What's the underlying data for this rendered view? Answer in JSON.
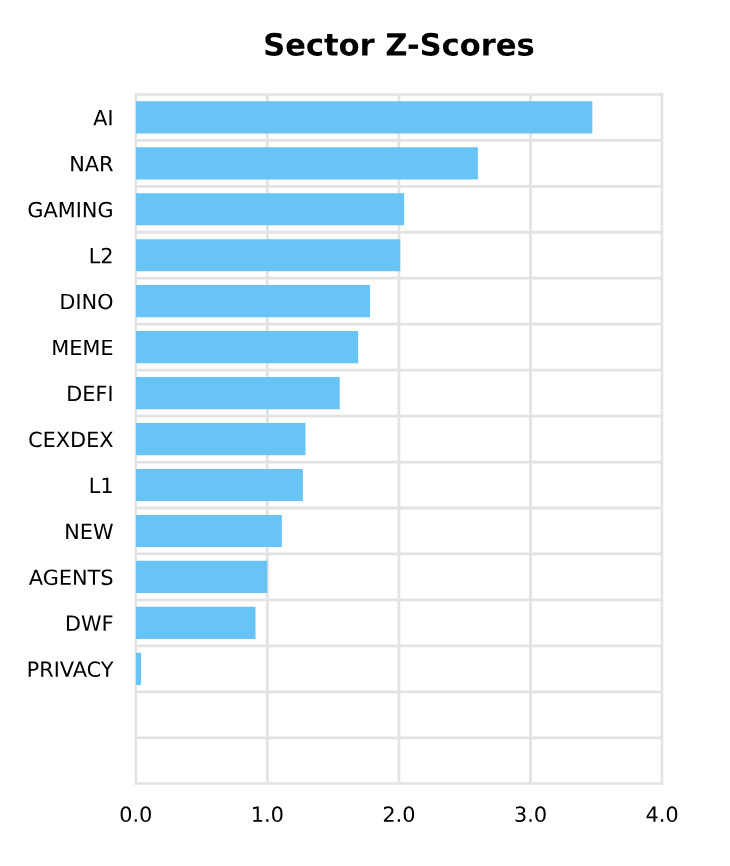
{
  "chart_data": {
    "type": "bar",
    "orientation": "horizontal",
    "title": "Sector Z-Scores",
    "categories": [
      "AI",
      "NAR",
      "GAMING",
      "L2",
      "DINO",
      "MEME",
      "DEFI",
      "CEXDEX",
      "L1",
      "NEW",
      "AGENTS",
      "DWF",
      "PRIVACY",
      null,
      null
    ],
    "values": [
      3.47,
      2.6,
      2.04,
      2.01,
      1.78,
      1.69,
      1.55,
      1.29,
      1.27,
      1.11,
      1.0,
      0.91,
      0.04,
      null,
      null
    ],
    "color": "#68c4f4",
    "xlim": [
      0,
      4
    ],
    "xticks": [
      {
        "value": 0,
        "label": "0.0"
      },
      {
        "value": 1,
        "label": "1.0"
      },
      {
        "value": 2,
        "label": "2.0"
      },
      {
        "value": 3,
        "label": "3.0"
      },
      {
        "value": 4,
        "label": "4.0"
      }
    ],
    "grid": true
  }
}
